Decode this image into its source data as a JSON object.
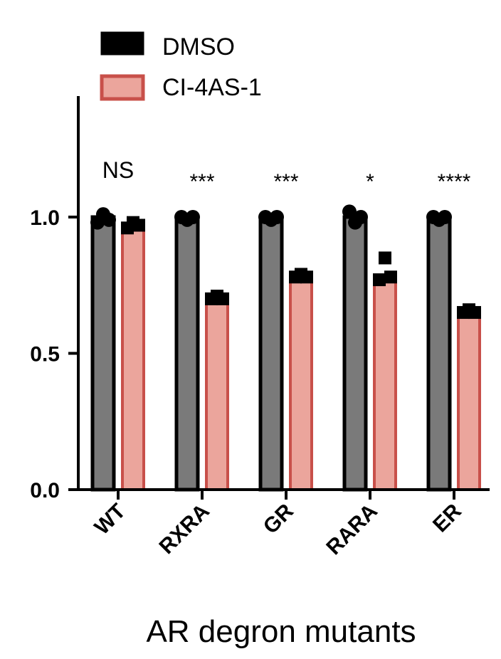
{
  "chart_data": {
    "type": "bar",
    "xlabel": "AR degron mutants",
    "ylabel": "",
    "ylim": [
      0,
      1.4
    ],
    "yticks": [
      0.0,
      0.5,
      1.0
    ],
    "ytick_labels": [
      "0.0",
      "0.5",
      "1.0"
    ],
    "categories": [
      "WT",
      "RXRA",
      "GR",
      "RARA",
      "ER"
    ],
    "legend_position": "top-left",
    "series": [
      {
        "name": "DMSO",
        "color": "#7a7a7a",
        "edge_color": "#000000",
        "values": [
          1.0,
          1.0,
          1.0,
          1.0,
          1.0
        ],
        "points": [
          [
            0.98,
            1.01,
            0.99
          ],
          [
            1.0,
            0.99,
            1.0
          ],
          [
            1.0,
            0.99,
            1.0
          ],
          [
            1.02,
            0.98,
            1.0
          ],
          [
            1.0,
            0.99,
            1.0
          ]
        ]
      },
      {
        "name": "CI-4AS-1",
        "color": "#eba59c",
        "edge_color": "#c8504a",
        "values": [
          0.96,
          0.7,
          0.78,
          0.78,
          0.65
        ],
        "points": [
          [
            0.96,
            0.98,
            0.97
          ],
          [
            0.7,
            0.71,
            0.7
          ],
          [
            0.78,
            0.79,
            0.78
          ],
          [
            0.77,
            0.85,
            0.78
          ],
          [
            0.65,
            0.66,
            0.65
          ]
        ]
      }
    ],
    "significance": [
      "NS",
      "***",
      "***",
      "*",
      "****"
    ]
  }
}
